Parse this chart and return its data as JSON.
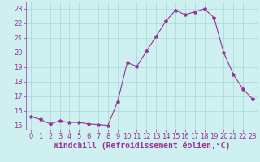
{
  "x": [
    0,
    1,
    2,
    3,
    4,
    5,
    6,
    7,
    8,
    9,
    10,
    11,
    12,
    13,
    14,
    15,
    16,
    17,
    18,
    19,
    20,
    21,
    22,
    23
  ],
  "y": [
    15.6,
    15.4,
    15.1,
    15.3,
    15.2,
    15.2,
    15.1,
    15.05,
    15.0,
    16.6,
    19.3,
    19.05,
    20.1,
    21.1,
    22.15,
    22.9,
    22.6,
    22.8,
    23.0,
    22.4,
    20.0,
    18.5,
    17.5,
    16.8
  ],
  "line_color": "#993399",
  "marker": "*",
  "marker_size": 3,
  "bg_color": "#cef0f0",
  "grid_color": "#aadddd",
  "xlabel": "Windchill (Refroidissement éolien,°C)",
  "xlabel_fontsize": 7,
  "yticks": [
    15,
    16,
    17,
    18,
    19,
    20,
    21,
    22,
    23
  ],
  "xticks": [
    0,
    1,
    2,
    3,
    4,
    5,
    6,
    7,
    8,
    9,
    10,
    11,
    12,
    13,
    14,
    15,
    16,
    17,
    18,
    19,
    20,
    21,
    22,
    23
  ],
  "ylim": [
    14.7,
    23.5
  ],
  "xlim": [
    -0.5,
    23.5
  ],
  "tick_fontsize": 6,
  "tick_color": "#993399"
}
